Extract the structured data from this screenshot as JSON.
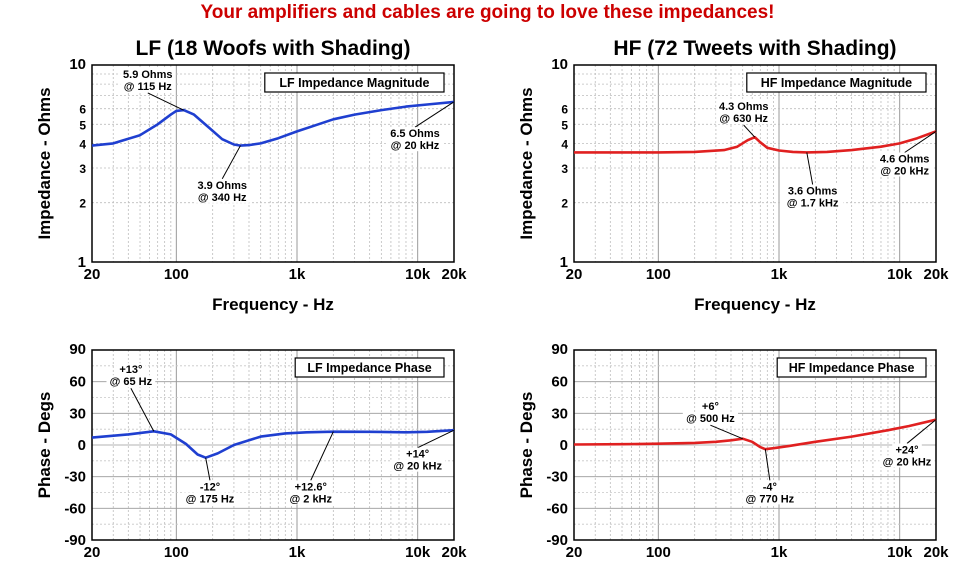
{
  "banner": "Your amplifiers and cables are going to love these impedances!",
  "colors": {
    "lf": "#1f3fd0",
    "hf": "#e02020",
    "banner": "#cc0000"
  },
  "chart_data": [
    {
      "type": "line",
      "title": "LF (18 Woofs with Shading)",
      "box_label": "LF Impedance Magnitude",
      "xlabel": "Frequency - Hz",
      "ylabel": "Impedance - Ohms",
      "x_scale": "log",
      "y_scale": "log",
      "xlim": [
        20,
        20000
      ],
      "ylim": [
        1,
        10
      ],
      "xticks": [
        {
          "v": 20,
          "label": "20"
        },
        {
          "v": 100,
          "label": "100"
        },
        {
          "v": 1000,
          "label": "1k"
        },
        {
          "v": 10000,
          "label": "10k"
        },
        {
          "v": 20000,
          "label": "20k"
        }
      ],
      "yticks": [
        {
          "v": 1,
          "label": "1"
        },
        {
          "v": 2,
          "label": "2"
        },
        {
          "v": 3,
          "label": "3"
        },
        {
          "v": 4,
          "label": "4"
        },
        {
          "v": 5,
          "label": "5"
        },
        {
          "v": 6,
          "label": "6"
        },
        {
          "v": 10,
          "label": "10"
        }
      ],
      "grid": true,
      "series": [
        {
          "color": "#1f3fd0",
          "x": [
            20,
            30,
            50,
            70,
            90,
            100,
            115,
            140,
            180,
            240,
            300,
            340,
            400,
            500,
            700,
            1000,
            1500,
            2000,
            3000,
            5000,
            8000,
            12000,
            20000
          ],
          "y": [
            3.9,
            4.0,
            4.4,
            5.0,
            5.6,
            5.85,
            5.9,
            5.6,
            4.9,
            4.2,
            3.95,
            3.9,
            3.92,
            4.0,
            4.25,
            4.6,
            5.0,
            5.3,
            5.6,
            5.9,
            6.15,
            6.3,
            6.5
          ]
        }
      ],
      "annotations": [
        {
          "lines": [
            "5.9 Ohms",
            "@ 115 Hz"
          ],
          "x": 115,
          "y": 5.9,
          "tx": 58,
          "ty": 8.6
        },
        {
          "lines": [
            "3.9 Ohms",
            "@ 340 Hz"
          ],
          "x": 340,
          "y": 3.9,
          "tx": 240,
          "ty": 2.35
        },
        {
          "lines": [
            "6.5 Ohms",
            "@ 20 kHz"
          ],
          "x": 20000,
          "y": 6.5,
          "tx": 9500,
          "ty": 4.3
        }
      ]
    },
    {
      "type": "line",
      "title": "HF (72 Tweets with Shading)",
      "box_label": "HF Impedance Magnitude",
      "xlabel": "Frequency - Hz",
      "ylabel": "Impedance - Ohms",
      "x_scale": "log",
      "y_scale": "log",
      "xlim": [
        20,
        20000
      ],
      "ylim": [
        1,
        10
      ],
      "xticks": [
        {
          "v": 20,
          "label": "20"
        },
        {
          "v": 100,
          "label": "100"
        },
        {
          "v": 1000,
          "label": "1k"
        },
        {
          "v": 10000,
          "label": "10k"
        },
        {
          "v": 20000,
          "label": "20k"
        }
      ],
      "yticks": [
        {
          "v": 1,
          "label": "1"
        },
        {
          "v": 2,
          "label": "2"
        },
        {
          "v": 3,
          "label": "3"
        },
        {
          "v": 4,
          "label": "4"
        },
        {
          "v": 5,
          "label": "5"
        },
        {
          "v": 6,
          "label": "6"
        },
        {
          "v": 10,
          "label": "10"
        }
      ],
      "grid": true,
      "series": [
        {
          "color": "#e02020",
          "x": [
            20,
            50,
            100,
            200,
            350,
            450,
            550,
            630,
            700,
            800,
            1000,
            1300,
            1700,
            2500,
            4000,
            7000,
            10000,
            14000,
            20000
          ],
          "y": [
            3.6,
            3.6,
            3.6,
            3.62,
            3.7,
            3.85,
            4.15,
            4.3,
            4.05,
            3.8,
            3.68,
            3.62,
            3.6,
            3.62,
            3.7,
            3.85,
            4.0,
            4.25,
            4.6
          ]
        }
      ],
      "annotations": [
        {
          "lines": [
            "4.3 Ohms",
            "@ 630 Hz"
          ],
          "x": 630,
          "y": 4.3,
          "tx": 510,
          "ty": 5.9
        },
        {
          "lines": [
            "3.6 Ohms",
            "@ 1.7 kHz"
          ],
          "x": 1700,
          "y": 3.6,
          "tx": 1900,
          "ty": 2.2
        },
        {
          "lines": [
            "4.6 Ohms",
            "@ 20 kHz"
          ],
          "x": 20000,
          "y": 4.6,
          "tx": 11000,
          "ty": 3.2
        }
      ]
    },
    {
      "type": "line",
      "title": "",
      "box_label": "LF Impedance Phase",
      "xlabel": "",
      "ylabel": "Phase - Degs",
      "x_scale": "log",
      "y_scale": "linear",
      "xlim": [
        20,
        20000
      ],
      "ylim": [
        -90,
        90
      ],
      "xticks": [
        {
          "v": 20,
          "label": "20"
        },
        {
          "v": 100,
          "label": "100"
        },
        {
          "v": 1000,
          "label": "1k"
        },
        {
          "v": 10000,
          "label": "10k"
        },
        {
          "v": 20000,
          "label": "20k"
        }
      ],
      "yticks": [
        {
          "v": 90,
          "label": "90"
        },
        {
          "v": 60,
          "label": "60"
        },
        {
          "v": 30,
          "label": "30"
        },
        {
          "v": 0,
          "label": "0"
        },
        {
          "v": -30,
          "label": "-30"
        },
        {
          "v": -60,
          "label": "-60"
        },
        {
          "v": -90,
          "label": "-90"
        }
      ],
      "grid": true,
      "series": [
        {
          "color": "#1f3fd0",
          "x": [
            20,
            40,
            65,
            90,
            120,
            150,
            175,
            220,
            300,
            500,
            800,
            1200,
            2000,
            4000,
            8000,
            12000,
            20000
          ],
          "y": [
            7,
            10,
            13,
            10,
            1,
            -9,
            -12,
            -8,
            0,
            8,
            11,
            12,
            12.6,
            12.5,
            12,
            12.5,
            14
          ]
        }
      ],
      "annotations": [
        {
          "lines": [
            "+13°",
            "@ 65 Hz"
          ],
          "x": 65,
          "y": 13,
          "tx": 42,
          "ty": 68
        },
        {
          "lines": [
            "-12°",
            "@ 175 Hz"
          ],
          "x": 175,
          "y": -12,
          "tx": 190,
          "ty": -43
        },
        {
          "lines": [
            "+12.6°",
            "@ 2 kHz"
          ],
          "x": 2000,
          "y": 12.6,
          "tx": 1300,
          "ty": -43
        },
        {
          "lines": [
            "+14°",
            "@ 20 kHz"
          ],
          "x": 20000,
          "y": 14,
          "tx": 10000,
          "ty": -12
        }
      ]
    },
    {
      "type": "line",
      "title": "",
      "box_label": "HF Impedance Phase",
      "xlabel": "",
      "ylabel": "Phase - Degs",
      "x_scale": "log",
      "y_scale": "linear",
      "xlim": [
        20,
        20000
      ],
      "ylim": [
        -90,
        90
      ],
      "xticks": [
        {
          "v": 20,
          "label": "20"
        },
        {
          "v": 100,
          "label": "100"
        },
        {
          "v": 1000,
          "label": "1k"
        },
        {
          "v": 10000,
          "label": "10k"
        },
        {
          "v": 20000,
          "label": "20k"
        }
      ],
      "yticks": [
        {
          "v": 90,
          "label": "90"
        },
        {
          "v": 60,
          "label": "60"
        },
        {
          "v": 30,
          "label": "30"
        },
        {
          "v": 0,
          "label": "0"
        },
        {
          "v": -30,
          "label": "-30"
        },
        {
          "v": -60,
          "label": "-60"
        },
        {
          "v": -90,
          "label": "-90"
        }
      ],
      "grid": true,
      "series": [
        {
          "color": "#e02020",
          "x": [
            20,
            50,
            100,
            200,
            300,
            400,
            500,
            600,
            700,
            770,
            900,
            1200,
            2000,
            4000,
            8000,
            12000,
            20000
          ],
          "y": [
            0.5,
            0.8,
            1.2,
            2,
            3,
            4.5,
            6,
            3,
            -2,
            -4,
            -3,
            -1,
            3,
            8,
            14,
            18,
            24
          ]
        }
      ],
      "annotations": [
        {
          "lines": [
            "+6°",
            "@ 500 Hz"
          ],
          "x": 500,
          "y": 6,
          "tx": 270,
          "ty": 33
        },
        {
          "lines": [
            "-4°",
            "@ 770 Hz"
          ],
          "x": 770,
          "y": -4,
          "tx": 840,
          "ty": -43
        },
        {
          "lines": [
            "+24°",
            "@ 20 kHz"
          ],
          "x": 20000,
          "y": 24,
          "tx": 11500,
          "ty": -8
        }
      ]
    }
  ]
}
